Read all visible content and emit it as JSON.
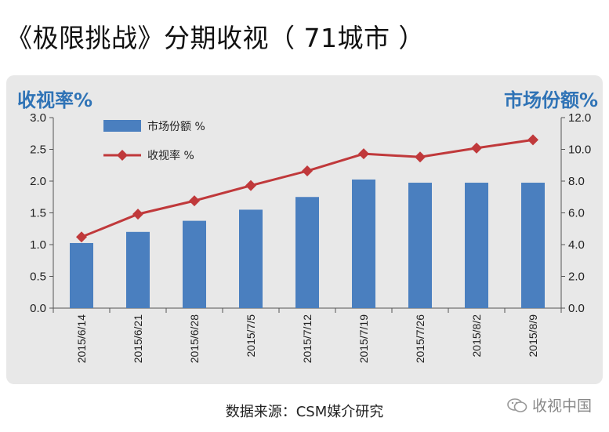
{
  "page": {
    "title": "《极限挑战》分期收视（ 71城市 ）",
    "source": "数据来源：CSM媒介研究",
    "watermark": "收视中国"
  },
  "colors": {
    "bar": "#4a7fbf",
    "line": "#c0393b",
    "axis_title": "#2f73b6",
    "panel_bg": "#e8e8e8"
  },
  "chart_data": {
    "type": "bar",
    "title": "",
    "categories": [
      "2015/6/14",
      "2015/6/21",
      "2015/6/28",
      "2015/7/5",
      "2015/7/12",
      "2015/7/19",
      "2015/7/26",
      "2015/8/2",
      "2015/8/9"
    ],
    "left_axis_title": "收视率%",
    "right_axis_title": "市场份额%",
    "ylim_left": [
      0,
      3.0
    ],
    "ylim_right": [
      0,
      12.0
    ],
    "yticks_left": [
      "0.0",
      "0.5",
      "1.0",
      "1.5",
      "2.0",
      "2.5",
      "3.0"
    ],
    "yticks_right": [
      "0.0",
      "2.0",
      "4.0",
      "6.0",
      "8.0",
      "10.0",
      "12.0"
    ],
    "series": [
      {
        "name": "市场份额 %",
        "type": "bar",
        "axis": "right",
        "values": [
          4.1,
          4.8,
          5.5,
          6.2,
          7.0,
          8.1,
          7.9,
          7.9,
          7.9
        ]
      },
      {
        "name": "收视率 %",
        "type": "line",
        "axis": "left",
        "values": [
          1.12,
          1.48,
          1.69,
          1.93,
          2.16,
          2.43,
          2.38,
          2.52,
          2.65
        ]
      }
    ],
    "grid": false,
    "legend_position": "top-left"
  }
}
